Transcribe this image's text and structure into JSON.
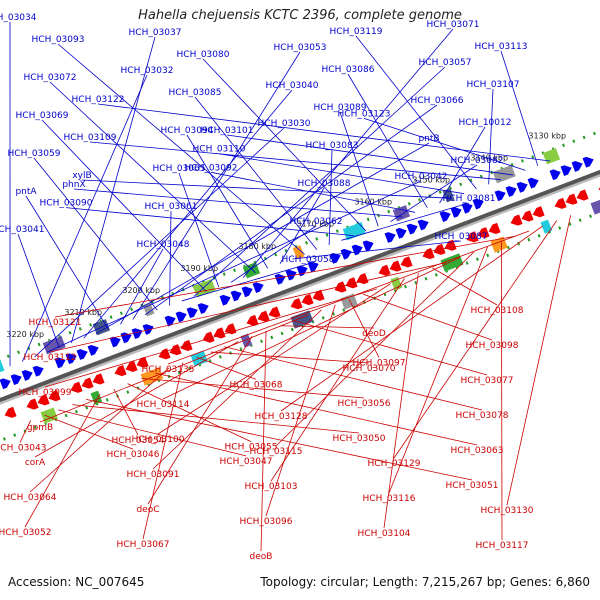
{
  "title": "Hahella chejuensis KCTC 2396, complete genome",
  "footer": {
    "accession": "Accession: NC_007645",
    "topology": "Topology: circular; Length: 7,215,267 bp; Genes: 6,860"
  },
  "colors": {
    "forward": "#0000cc",
    "reverse": "#cc0000",
    "backbone": "#555555",
    "tick": "#229922"
  },
  "ticks": [
    "3130 kbp",
    "3140 kbp",
    "3150 kbp",
    "3160 kbp",
    "3170 kbp",
    "3180 kbp",
    "3190 kbp",
    "3200 kbp",
    "3210 kbp",
    "3220 kbp"
  ],
  "forward_labels": [
    "HCH_03034",
    "HCH_03032",
    "HCH_03030",
    "HCH_03042",
    "HCH_03041",
    "HCH_03037",
    "HCH_03040",
    "pntB",
    "pntA",
    "HCH_03048",
    "HCH_03053",
    "HCH_03066",
    "HCH_03059",
    "HCH_03061",
    "HCH_03058",
    "HCH_03057",
    "HCH_03069",
    "HCH_03065",
    "HCH_03062",
    "HCH_03071",
    "HCH_03072",
    "HCH_03094",
    "HCH_03088",
    "HCH_03087",
    "HCH_03093",
    "HCH_03085",
    "HCH_03083",
    "HCH_03081",
    "HCH_03090",
    "HCH_03080",
    "HCH_03089",
    "HCH_03082",
    "phnX",
    "HCH_03092",
    "HCH_03086",
    "HCH_10012",
    "xylB",
    "HCH_03110",
    "HCH_03119",
    "HCH_03107",
    "HCH_03109",
    "HCH_03101",
    "HCH_03123",
    "HCH_03113",
    "HCH_03122"
  ],
  "reverse_labels": [
    "HCH_03043",
    "HCH_03046",
    "HCH_03047",
    "HCH_03050",
    "HCH_03051",
    "HCH_03052",
    "HCH_03054",
    "HCH_03055",
    "HCH_03056",
    "HCH_03063",
    "HCH_03064",
    "HCH_03067",
    "HCH_03068",
    "HCH_03070",
    "HCH_03078",
    "corA",
    "deoC",
    "deoB",
    "deoD",
    "HCH_03077",
    "gpmB",
    "HCH_03091",
    "HCH_03096",
    "HCH_03097",
    "HCH_03098",
    "HCH_03099",
    "HCH_03100",
    "HCH_03103",
    "HCH_03104",
    "HCH_03108",
    "HCH_03112",
    "HCH_03114",
    "HCH_03115",
    "HCH_03116",
    "HCH_03117",
    "HCH_03121",
    "HCH_03135",
    "HCH_03128",
    "HCH_03129",
    "HCH_03130"
  ]
}
